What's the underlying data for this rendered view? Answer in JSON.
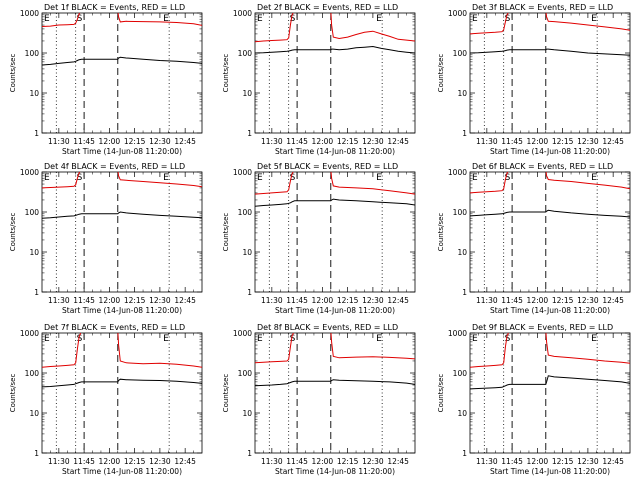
{
  "figure": {
    "y_label": "Counts/sec",
    "x_label": "Start Time (14-Jun-08 11:20:00)",
    "x_ticks": [
      "11:30",
      "11:45",
      "12:00",
      "12:15",
      "12:30",
      "12:45"
    ],
    "y_ticks": [
      "1",
      "10",
      "100",
      "1000"
    ],
    "markers": {
      "start": "E",
      "s_mark": "S",
      "end": "E"
    }
  },
  "chart_data": [
    {
      "type": "line",
      "title": "Det 1f BLACK = Events, RED = LLD",
      "x_unit": "minutes since 11:20:00",
      "xlim": [
        0,
        95
      ],
      "ylim": [
        1,
        1000
      ],
      "y_scale": "log",
      "x_tick_values": [
        10,
        25,
        40,
        55,
        70,
        85
      ],
      "event_lines": {
        "dotted": [
          8.5,
          20,
          75.5
        ],
        "dashed": [
          25,
          45
        ]
      },
      "gap": [
        25,
        45
      ],
      "series": [
        {
          "name": "LLD",
          "color": "#e00000",
          "x": [
            0,
            5,
            10,
            15,
            19,
            20,
            21,
            22,
            23.5,
            45,
            45.5,
            46.5,
            50,
            60,
            70,
            80,
            90,
            95
          ],
          "y": [
            460,
            470,
            500,
            510,
            520,
            560,
            700,
            950,
            1200,
            1200,
            800,
            600,
            620,
            610,
            600,
            580,
            540,
            490
          ]
        },
        {
          "name": "Events",
          "color": "#000000",
          "x": [
            0,
            5,
            10,
            15,
            19,
            20,
            21,
            22,
            23.5,
            45,
            45.5,
            46.5,
            50,
            60,
            70,
            80,
            90,
            95
          ],
          "y": [
            50,
            52,
            55,
            58,
            60,
            62,
            65,
            68,
            70,
            70,
            75,
            78,
            75,
            70,
            65,
            62,
            58,
            55
          ]
        }
      ]
    },
    {
      "type": "line",
      "title": "Det 2f BLACK = Events, RED = LLD",
      "x_unit": "minutes since 11:20:00",
      "xlim": [
        0,
        95
      ],
      "ylim": [
        1,
        1000
      ],
      "y_scale": "log",
      "x_tick_values": [
        10,
        25,
        40,
        55,
        70,
        85
      ],
      "event_lines": {
        "dotted": [
          8.5,
          20,
          75.5
        ],
        "dashed": [
          25,
          45
        ]
      },
      "gap": [
        25,
        45
      ],
      "series": [
        {
          "name": "LLD",
          "color": "#e00000",
          "x": [
            0,
            5,
            10,
            15,
            19,
            20,
            21,
            22,
            23.5,
            45,
            45.5,
            46.5,
            50,
            55,
            60,
            65,
            70,
            75,
            80,
            85,
            90,
            95
          ],
          "y": [
            190,
            200,
            205,
            210,
            215,
            240,
            500,
            900,
            1200,
            1200,
            500,
            250,
            230,
            250,
            290,
            330,
            350,
            300,
            260,
            220,
            210,
            200
          ]
        },
        {
          "name": "Events",
          "color": "#000000",
          "x": [
            0,
            5,
            10,
            15,
            19,
            20,
            21,
            22,
            23.5,
            45,
            45.5,
            46.5,
            50,
            55,
            60,
            65,
            70,
            75,
            80,
            85,
            90,
            95
          ],
          "y": [
            100,
            102,
            105,
            108,
            110,
            112,
            115,
            118,
            120,
            120,
            125,
            125,
            120,
            125,
            135,
            140,
            145,
            130,
            120,
            110,
            105,
            100
          ]
        }
      ]
    },
    {
      "type": "line",
      "title": "Det 3f BLACK = Events, RED = LLD",
      "x_unit": "minutes since 11:20:00",
      "xlim": [
        0,
        95
      ],
      "ylim": [
        1,
        1000
      ],
      "y_scale": "log",
      "x_tick_values": [
        10,
        25,
        40,
        55,
        70,
        85
      ],
      "event_lines": {
        "dotted": [
          8.5,
          20,
          75.5
        ],
        "dashed": [
          25,
          45
        ]
      },
      "gap": [
        25,
        45
      ],
      "series": [
        {
          "name": "LLD",
          "color": "#e00000",
          "x": [
            0,
            5,
            10,
            15,
            19,
            20,
            21,
            22,
            23.5,
            45,
            45.5,
            46.5,
            50,
            60,
            70,
            80,
            90,
            95
          ],
          "y": [
            300,
            310,
            320,
            330,
            340,
            380,
            600,
            900,
            1200,
            1200,
            800,
            620,
            610,
            560,
            500,
            450,
            400,
            370
          ]
        },
        {
          "name": "Events",
          "color": "#000000",
          "x": [
            0,
            5,
            10,
            15,
            19,
            20,
            21,
            22,
            23.5,
            45,
            45.5,
            46.5,
            50,
            60,
            70,
            80,
            90,
            95
          ],
          "y": [
            100,
            102,
            105,
            108,
            110,
            112,
            115,
            118,
            120,
            120,
            125,
            125,
            120,
            110,
            100,
            95,
            90,
            88
          ]
        }
      ]
    },
    {
      "type": "line",
      "title": "Det 4f BLACK = Events, RED = LLD",
      "x_unit": "minutes since 11:20:00",
      "xlim": [
        0,
        95
      ],
      "ylim": [
        1,
        1000
      ],
      "y_scale": "log",
      "x_tick_values": [
        10,
        25,
        40,
        55,
        70,
        85
      ],
      "event_lines": {
        "dotted": [
          8.5,
          20,
          75.5
        ],
        "dashed": [
          25,
          45
        ]
      },
      "gap": [
        25,
        45
      ],
      "series": [
        {
          "name": "LLD",
          "color": "#e00000",
          "x": [
            0,
            5,
            10,
            15,
            19,
            20,
            21,
            22,
            23.5,
            45,
            45.5,
            46.5,
            50,
            60,
            70,
            80,
            90,
            95
          ],
          "y": [
            400,
            410,
            420,
            430,
            440,
            480,
            700,
            950,
            1200,
            1200,
            800,
            640,
            620,
            580,
            540,
            500,
            460,
            430
          ]
        },
        {
          "name": "Events",
          "color": "#000000",
          "x": [
            0,
            5,
            10,
            15,
            19,
            20,
            21,
            22,
            23.5,
            45,
            45.5,
            46.5,
            50,
            60,
            70,
            80,
            90,
            95
          ],
          "y": [
            70,
            72,
            75,
            78,
            80,
            82,
            85,
            88,
            90,
            90,
            95,
            100,
            95,
            88,
            82,
            78,
            74,
            72
          ]
        }
      ]
    },
    {
      "type": "line",
      "title": "Det 5f BLACK = Events, RED = LLD",
      "x_unit": "minutes since 11:20:00",
      "xlim": [
        0,
        95
      ],
      "ylim": [
        1,
        1000
      ],
      "y_scale": "log",
      "x_tick_values": [
        10,
        25,
        40,
        55,
        70,
        85
      ],
      "event_lines": {
        "dotted": [
          8.5,
          20,
          75.5
        ],
        "dashed": [
          25,
          45
        ]
      },
      "gap": [
        25,
        45
      ],
      "series": [
        {
          "name": "LLD",
          "color": "#e00000",
          "x": [
            0,
            5,
            10,
            15,
            19,
            20,
            21,
            22,
            23.5,
            45,
            45.5,
            46.5,
            50,
            60,
            70,
            80,
            90,
            95
          ],
          "y": [
            280,
            290,
            300,
            310,
            320,
            360,
            600,
            900,
            1200,
            1200,
            700,
            450,
            420,
            400,
            380,
            340,
            300,
            280
          ]
        },
        {
          "name": "Events",
          "color": "#000000",
          "x": [
            0,
            5,
            10,
            15,
            19,
            20,
            21,
            22,
            23.5,
            45,
            45.5,
            46.5,
            50,
            60,
            70,
            80,
            90,
            95
          ],
          "y": [
            140,
            145,
            150,
            155,
            160,
            165,
            170,
            180,
            190,
            190,
            200,
            210,
            200,
            190,
            180,
            170,
            160,
            150
          ]
        }
      ]
    },
    {
      "type": "line",
      "title": "Det 6f BLACK = Events, RED = LLD",
      "x_unit": "minutes since 11:20:00",
      "xlim": [
        0,
        95
      ],
      "ylim": [
        1,
        1000
      ],
      "y_scale": "log",
      "x_tick_values": [
        10,
        25,
        40,
        55,
        70,
        85
      ],
      "event_lines": {
        "dotted": [
          8.5,
          20,
          75.5
        ],
        "dashed": [
          25,
          45
        ]
      },
      "gap": [
        25,
        45
      ],
      "series": [
        {
          "name": "LLD",
          "color": "#e00000",
          "x": [
            0,
            5,
            10,
            15,
            19,
            20,
            21,
            22,
            23.5,
            45,
            45.5,
            46.5,
            50,
            60,
            70,
            80,
            90,
            95
          ],
          "y": [
            300,
            310,
            320,
            330,
            340,
            380,
            650,
            950,
            1200,
            1200,
            800,
            650,
            620,
            580,
            520,
            470,
            420,
            380
          ]
        },
        {
          "name": "Events",
          "color": "#000000",
          "x": [
            0,
            5,
            10,
            15,
            19,
            20,
            21,
            22,
            23.5,
            45,
            45.5,
            46.5,
            50,
            60,
            70,
            80,
            90,
            95
          ],
          "y": [
            80,
            82,
            85,
            88,
            90,
            92,
            95,
            98,
            100,
            100,
            105,
            110,
            105,
            95,
            88,
            82,
            78,
            75
          ]
        }
      ]
    },
    {
      "type": "line",
      "title": "Det 7f BLACK = Events, RED = LLD",
      "x_unit": "minutes since 11:20:00",
      "xlim": [
        0,
        95
      ],
      "ylim": [
        1,
        1000
      ],
      "y_scale": "log",
      "x_tick_values": [
        10,
        25,
        40,
        55,
        70,
        85
      ],
      "event_lines": {
        "dotted": [
          8.5,
          20,
          75.5
        ],
        "dashed": [
          25,
          45
        ]
      },
      "gap": [
        25,
        45
      ],
      "series": [
        {
          "name": "LLD",
          "color": "#e00000",
          "x": [
            0,
            5,
            10,
            15,
            19,
            20,
            21,
            22,
            23.5,
            45,
            45.5,
            46.5,
            50,
            60,
            70,
            80,
            90,
            95
          ],
          "y": [
            140,
            145,
            150,
            155,
            160,
            180,
            400,
            800,
            1200,
            1200,
            500,
            200,
            180,
            170,
            175,
            165,
            150,
            140
          ]
        },
        {
          "name": "Events",
          "color": "#000000",
          "x": [
            0,
            5,
            10,
            15,
            19,
            20,
            21,
            22,
            23.5,
            45,
            45.5,
            46.5,
            50,
            60,
            70,
            80,
            90,
            95
          ],
          "y": [
            45,
            46,
            48,
            50,
            52,
            54,
            56,
            58,
            60,
            60,
            65,
            70,
            68,
            66,
            65,
            62,
            58,
            55
          ]
        }
      ]
    },
    {
      "type": "line",
      "title": "Det 8f BLACK = Events, RED = LLD",
      "x_unit": "minutes since 11:20:00",
      "xlim": [
        0,
        95
      ],
      "ylim": [
        1,
        1000
      ],
      "y_scale": "log",
      "x_tick_values": [
        10,
        25,
        40,
        55,
        70,
        85
      ],
      "event_lines": {
        "dotted": [
          8.5,
          20,
          75.5
        ],
        "dashed": [
          25,
          45
        ]
      },
      "gap": [
        25,
        45
      ],
      "series": [
        {
          "name": "LLD",
          "color": "#e00000",
          "x": [
            0,
            5,
            10,
            15,
            19,
            20,
            21,
            22,
            23.5,
            45,
            45.5,
            46.5,
            50,
            60,
            70,
            80,
            90,
            95
          ],
          "y": [
            180,
            185,
            190,
            195,
            200,
            220,
            450,
            850,
            1200,
            1200,
            600,
            260,
            240,
            250,
            255,
            245,
            235,
            225
          ]
        },
        {
          "name": "Events",
          "color": "#000000",
          "x": [
            0,
            5,
            10,
            15,
            19,
            20,
            21,
            22,
            23.5,
            45,
            45.5,
            46.5,
            50,
            60,
            70,
            80,
            90,
            95
          ],
          "y": [
            48,
            49,
            50,
            52,
            54,
            56,
            58,
            60,
            62,
            62,
            65,
            68,
            66,
            64,
            62,
            60,
            56,
            52
          ]
        }
      ]
    },
    {
      "type": "line",
      "title": "Det 9f BLACK = Events, RED = LLD",
      "x_unit": "minutes since 11:20:00",
      "xlim": [
        0,
        95
      ],
      "ylim": [
        1,
        1000
      ],
      "y_scale": "log",
      "x_tick_values": [
        10,
        25,
        40,
        55,
        70,
        85
      ],
      "event_lines": {
        "dotted": [
          8.5,
          20,
          75.5
        ],
        "dashed": [
          25,
          45
        ]
      },
      "gap": [
        25,
        45
      ],
      "series": [
        {
          "name": "LLD",
          "color": "#e00000",
          "x": [
            0,
            5,
            10,
            15,
            19,
            20,
            21,
            22,
            23.5,
            45,
            45.5,
            46.5,
            50,
            60,
            70,
            80,
            90,
            95
          ],
          "y": [
            140,
            145,
            150,
            155,
            160,
            180,
            450,
            850,
            1200,
            1200,
            600,
            280,
            260,
            240,
            220,
            200,
            185,
            175
          ]
        },
        {
          "name": "Events",
          "color": "#000000",
          "x": [
            0,
            5,
            10,
            15,
            19,
            20,
            21,
            22,
            23.5,
            45,
            45.5,
            46.5,
            50,
            60,
            70,
            80,
            90,
            95
          ],
          "y": [
            40,
            41,
            42,
            43,
            44,
            46,
            48,
            50,
            52,
            52,
            60,
            85,
            80,
            75,
            70,
            65,
            60,
            55
          ]
        }
      ]
    }
  ]
}
